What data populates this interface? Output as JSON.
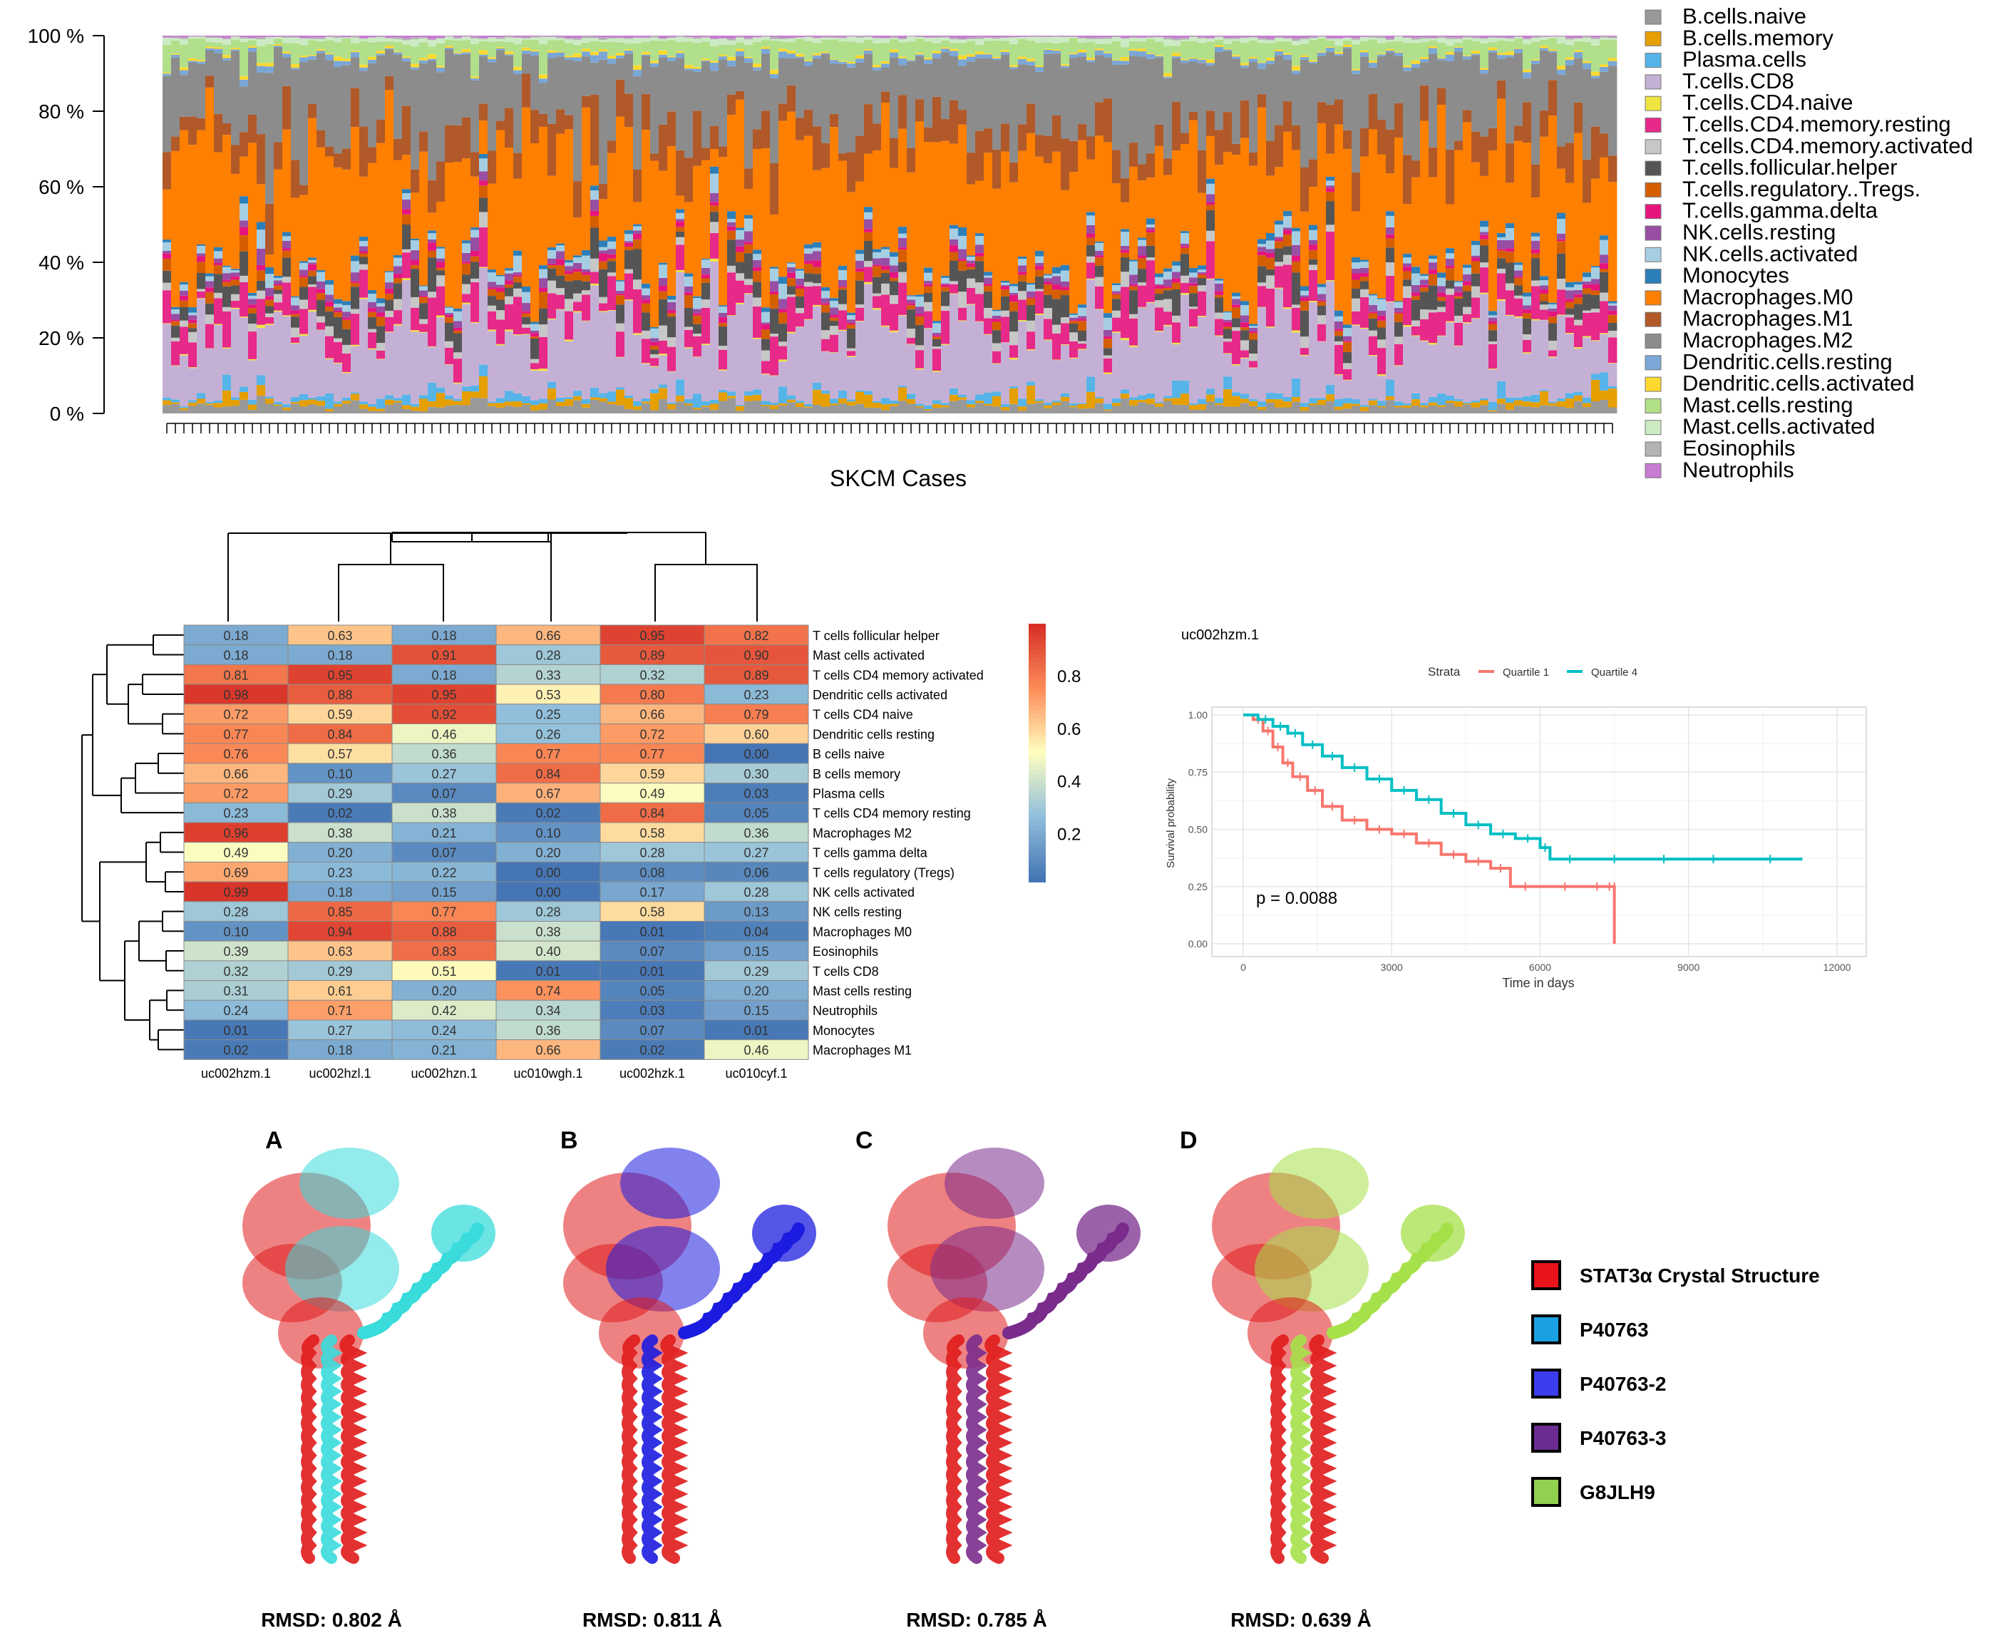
{
  "stacked": {
    "yticks": [
      "0 %",
      "20 %",
      "40 %",
      "60 %",
      "80 %",
      "100 %"
    ],
    "xlabel": "SKCM Cases",
    "legend": [
      {
        "label": "B.cells.naive",
        "color": "#999999"
      },
      {
        "label": "B.cells.memory",
        "color": "#E69F00"
      },
      {
        "label": "Plasma.cells",
        "color": "#56B4E9"
      },
      {
        "label": "T.cells.CD8",
        "color": "#C5B0D5"
      },
      {
        "label": "T.cells.CD4.naive",
        "color": "#F0E442"
      },
      {
        "label": "T.cells.CD4.memory.resting",
        "color": "#E7298A"
      },
      {
        "label": "T.cells.CD4.memory.activated",
        "color": "#C7C7C7"
      },
      {
        "label": "T.cells.follicular.helper",
        "color": "#555555"
      },
      {
        "label": "T.cells.regulatory..Tregs.",
        "color": "#D55E00"
      },
      {
        "label": "T.cells.gamma.delta",
        "color": "#E6157D"
      },
      {
        "label": "NK.cells.resting",
        "color": "#984EA3"
      },
      {
        "label": "NK.cells.activated",
        "color": "#A6CEE3"
      },
      {
        "label": "Monocytes",
        "color": "#2C7FB8"
      },
      {
        "label": "Macrophages.M0",
        "color": "#FF7F00"
      },
      {
        "label": "Macrophages.M1",
        "color": "#B15928"
      },
      {
        "label": "Macrophages.M2",
        "color": "#8C8C8C"
      },
      {
        "label": "Dendritic.cells.resting",
        "color": "#7BA7D7"
      },
      {
        "label": "Dendritic.cells.activated",
        "color": "#FFD92F"
      },
      {
        "label": "Mast.cells.resting",
        "color": "#B2DF8A"
      },
      {
        "label": "Mast.cells.activated",
        "color": "#CCEBC5"
      },
      {
        "label": "Eosinophils",
        "color": "#B3B3B3"
      },
      {
        "label": "Neutrophils",
        "color": "#C77CD1"
      }
    ]
  },
  "heatmap": {
    "columns": [
      "uc002hzm.1",
      "uc002hzl.1",
      "uc002hzn.1",
      "uc010wgh.1",
      "uc002hzk.1",
      "uc010cyf.1"
    ],
    "rows": [
      {
        "label": "T cells follicular helper",
        "values": [
          "0.18",
          "0.63",
          "0.18",
          "0.66",
          "0.95",
          "0.82"
        ]
      },
      {
        "label": "Mast cells activated",
        "values": [
          "0.18",
          "0.18",
          "0.91",
          "0.28",
          "0.89",
          "0.90"
        ]
      },
      {
        "label": "T cells CD4 memory activated",
        "values": [
          "0.81",
          "0.95",
          "0.18",
          "0.33",
          "0.32",
          "0.89"
        ]
      },
      {
        "label": "Dendritic cells activated",
        "values": [
          "0.98",
          "0.88",
          "0.95",
          "0.53",
          "0.80",
          "0.23"
        ]
      },
      {
        "label": "T cells CD4 naive",
        "values": [
          "0.72",
          "0.59",
          "0.92",
          "0.25",
          "0.66",
          "0.79"
        ]
      },
      {
        "label": "Dendritic cells resting",
        "values": [
          "0.77",
          "0.84",
          "0.46",
          "0.26",
          "0.72",
          "0.60"
        ]
      },
      {
        "label": "B cells naive",
        "values": [
          "0.76",
          "0.57",
          "0.36",
          "0.77",
          "0.77",
          "0.00"
        ]
      },
      {
        "label": "B cells memory",
        "values": [
          "0.66",
          "0.10",
          "0.27",
          "0.84",
          "0.59",
          "0.30"
        ]
      },
      {
        "label": "Plasma cells",
        "values": [
          "0.72",
          "0.29",
          "0.07",
          "0.67",
          "0.49",
          "0.03"
        ]
      },
      {
        "label": "T cells CD4 memory resting",
        "values": [
          "0.23",
          "0.02",
          "0.38",
          "0.02",
          "0.84",
          "0.05"
        ]
      },
      {
        "label": "Macrophages M2",
        "values": [
          "0.96",
          "0.38",
          "0.21",
          "0.10",
          "0.58",
          "0.36"
        ]
      },
      {
        "label": "T cells gamma delta",
        "values": [
          "0.49",
          "0.20",
          "0.07",
          "0.20",
          "0.28",
          "0.27"
        ]
      },
      {
        "label": "T cells regulatory (Tregs)",
        "values": [
          "0.69",
          "0.23",
          "0.22",
          "0.00",
          "0.08",
          "0.06"
        ]
      },
      {
        "label": "NK cells activated",
        "values": [
          "0.99",
          "0.18",
          "0.15",
          "0.00",
          "0.17",
          "0.28"
        ]
      },
      {
        "label": "NK cells resting",
        "values": [
          "0.28",
          "0.85",
          "0.77",
          "0.28",
          "0.58",
          "0.13"
        ]
      },
      {
        "label": "Macrophages M0",
        "values": [
          "0.10",
          "0.94",
          "0.88",
          "0.38",
          "0.01",
          "0.04"
        ]
      },
      {
        "label": "Eosinophils",
        "values": [
          "0.39",
          "0.63",
          "0.83",
          "0.40",
          "0.07",
          "0.15"
        ]
      },
      {
        "label": "T cells CD8",
        "values": [
          "0.32",
          "0.29",
          "0.51",
          "0.01",
          "0.01",
          "0.29"
        ]
      },
      {
        "label": "Mast cells resting",
        "values": [
          "0.31",
          "0.61",
          "0.20",
          "0.74",
          "0.05",
          "0.20"
        ]
      },
      {
        "label": "Neutrophils",
        "values": [
          "0.24",
          "0.71",
          "0.42",
          "0.34",
          "0.03",
          "0.15"
        ]
      },
      {
        "label": "Monocytes",
        "values": [
          "0.01",
          "0.27",
          "0.24",
          "0.36",
          "0.07",
          "0.01"
        ]
      },
      {
        "label": "Macrophages M1",
        "values": [
          "0.02",
          "0.18",
          "0.21",
          "0.66",
          "0.02",
          "0.46"
        ]
      }
    ],
    "colorbar_ticks": [
      "0.2",
      "0.4",
      "0.6",
      "0.8"
    ]
  },
  "survival": {
    "title": "uc002hzm.1",
    "strata_label": "Strata",
    "strata": [
      {
        "label": "Quartile 1",
        "color": "#F8766D"
      },
      {
        "label": "Quartile 4",
        "color": "#00BFC4"
      }
    ],
    "ylabel": "Survival probability",
    "xlabel": "Time in days",
    "yticks": [
      "0.00",
      "0.25",
      "0.50",
      "0.75",
      "1.00"
    ],
    "xticks": [
      "0",
      "3000",
      "6000",
      "9000",
      "12000"
    ],
    "pvalue": "p = 0.0088"
  },
  "structures": {
    "panels": [
      {
        "letter": "A",
        "rmsd": "RMSD: 0.802 Å",
        "color": "#3ADBDB"
      },
      {
        "letter": "B",
        "rmsd": "RMSD: 0.811 Å",
        "color": "#1C1CE0"
      },
      {
        "letter": "C",
        "rmsd": "RMSD: 0.785 Å",
        "color": "#7A2C8C"
      },
      {
        "letter": "D",
        "rmsd": "RMSD: 0.639 Å",
        "color": "#A6E04A"
      }
    ],
    "legend": [
      {
        "label": "STAT3α Crystal Structure",
        "color": "#E8131B"
      },
      {
        "label": "P40763",
        "color": "#1BA1E2"
      },
      {
        "label": "P40763-2",
        "color": "#3D3DF0"
      },
      {
        "label": "P40763-3",
        "color": "#6A2C91"
      },
      {
        "label": "G8JLH9",
        "color": "#92D050"
      }
    ]
  },
  "chart_data": [
    {
      "type": "bar",
      "subtype": "stacked-100",
      "xlabel": "SKCM Cases",
      "ylim": [
        0,
        100
      ],
      "series": [
        {
          "name": "B.cells.naive",
          "values": [
            2
          ]
        },
        {
          "name": "B.cells.memory",
          "values": [
            1
          ]
        },
        {
          "name": "Plasma.cells",
          "values": [
            1
          ]
        },
        {
          "name": "T.cells.CD8",
          "values": [
            17
          ]
        },
        {
          "name": "T.cells.CD4.naive",
          "values": [
            0
          ]
        },
        {
          "name": "T.cells.CD4.memory.resting",
          "values": [
            5
          ]
        },
        {
          "name": "T.cells.CD4.memory.activated",
          "values": [
            2
          ]
        },
        {
          "name": "T.cells.follicular.helper",
          "values": [
            4
          ]
        },
        {
          "name": "T.cells.regulatory..Tregs.",
          "values": [
            2
          ]
        },
        {
          "name": "T.cells.gamma.delta",
          "values": [
            1
          ]
        },
        {
          "name": "NK.cells.resting",
          "values": [
            1
          ]
        },
        {
          "name": "NK.cells.activated",
          "values": [
            2
          ]
        },
        {
          "name": "Monocytes",
          "values": [
            1
          ]
        },
        {
          "name": "Macrophages.M0",
          "values": [
            28
          ]
        },
        {
          "name": "Macrophages.M1",
          "values": [
            8
          ]
        },
        {
          "name": "Macrophages.M2",
          "values": [
            18
          ]
        },
        {
          "name": "Dendritic.cells.resting",
          "values": [
            1
          ]
        },
        {
          "name": "Dendritic.cells.activated",
          "values": [
            1
          ]
        },
        {
          "name": "Mast.cells.resting",
          "values": [
            4
          ]
        },
        {
          "name": "Mast.cells.activated",
          "values": [
            1
          ]
        },
        {
          "name": "Eosinophils",
          "values": [
            0
          ]
        },
        {
          "name": "Neutrophils",
          "values": [
            0
          ]
        }
      ]
    },
    {
      "type": "heatmap",
      "x": [
        "uc002hzm.1",
        "uc002hzl.1",
        "uc002hzn.1",
        "uc010wgh.1",
        "uc002hzk.1",
        "uc010cyf.1"
      ],
      "y": [
        "T cells follicular helper",
        "Mast cells activated",
        "T cells CD4 memory activated",
        "Dendritic cells activated",
        "T cells CD4 naive",
        "Dendritic cells resting",
        "B cells naive",
        "B cells memory",
        "Plasma cells",
        "T cells CD4 memory resting",
        "Macrophages M2",
        "T cells gamma delta",
        "T cells regulatory (Tregs)",
        "NK cells activated",
        "NK cells resting",
        "Macrophages M0",
        "Eosinophils",
        "T cells CD8",
        "Mast cells resting",
        "Neutrophils",
        "Monocytes",
        "Macrophages M1"
      ],
      "zlim": [
        0,
        1
      ]
    },
    {
      "type": "line",
      "title": "uc002hzm.1",
      "xlabel": "Time in days",
      "ylabel": "Survival probability",
      "xlim": [
        0,
        12000
      ],
      "ylim": [
        0,
        1
      ],
      "series": [
        {
          "name": "Quartile 1",
          "x": [
            0,
            200,
            400,
            600,
            800,
            1000,
            1300,
            1600,
            2000,
            2500,
            3000,
            3500,
            4000,
            4500,
            5000,
            5400,
            6000,
            7000,
            7300,
            7500,
            7500
          ],
          "y": [
            1.0,
            0.98,
            0.93,
            0.86,
            0.79,
            0.73,
            0.67,
            0.6,
            0.54,
            0.5,
            0.48,
            0.44,
            0.39,
            0.36,
            0.33,
            0.25,
            0.25,
            0.25,
            0.25,
            0.25,
            0.0
          ]
        },
        {
          "name": "Quartile 4",
          "x": [
            0,
            300,
            600,
            900,
            1200,
            1600,
            2000,
            2500,
            3000,
            3500,
            4000,
            4500,
            5000,
            5500,
            6000,
            6200,
            7000,
            8000,
            9000,
            10000,
            11300
          ],
          "y": [
            1.0,
            0.98,
            0.95,
            0.92,
            0.87,
            0.82,
            0.77,
            0.72,
            0.67,
            0.63,
            0.57,
            0.52,
            0.48,
            0.46,
            0.42,
            0.37,
            0.37,
            0.37,
            0.37,
            0.37,
            0.37
          ]
        }
      ],
      "annotation": "p = 0.0088"
    }
  ]
}
